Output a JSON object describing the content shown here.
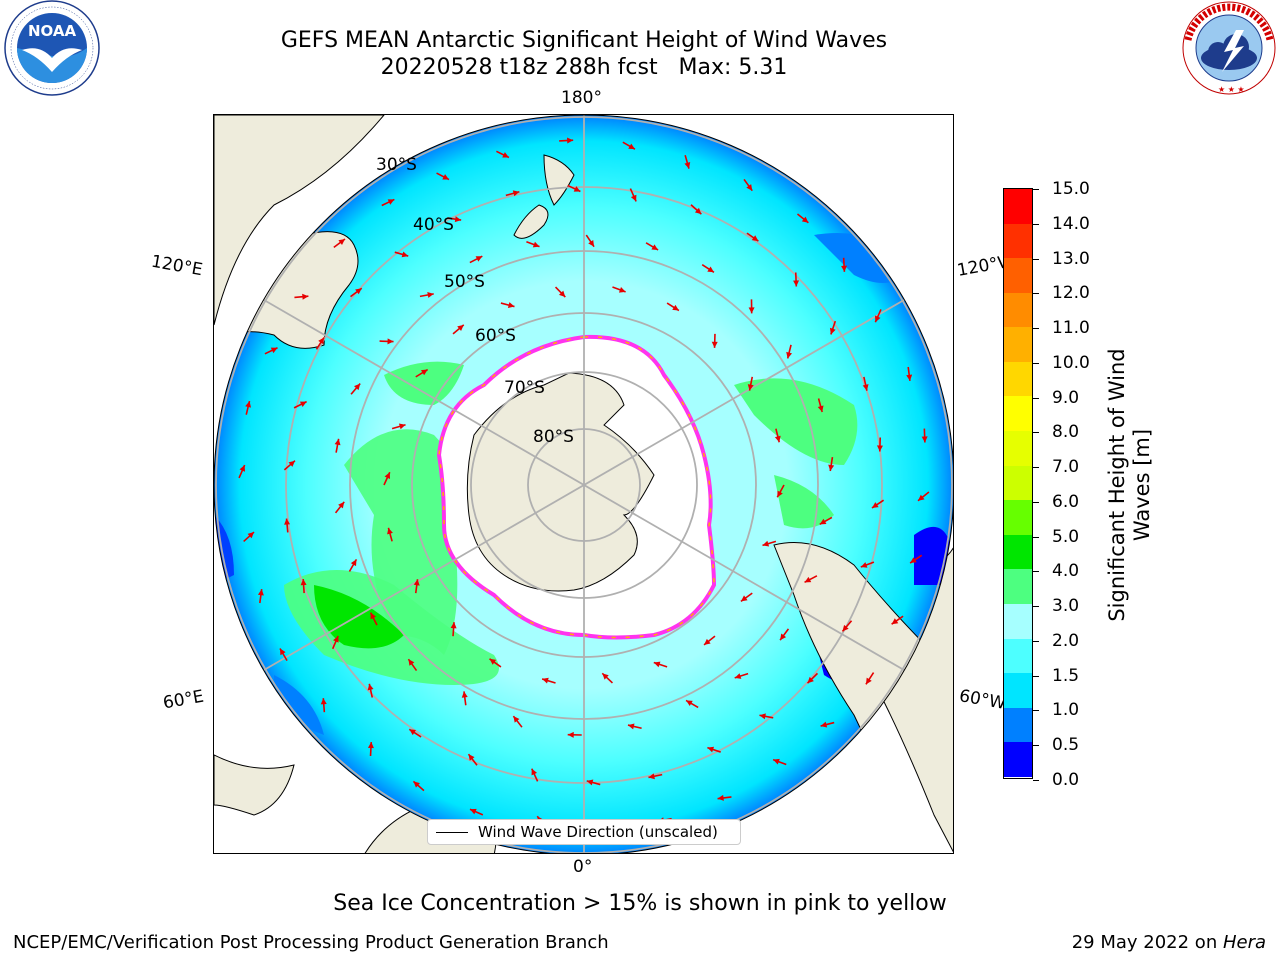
{
  "title": {
    "line1": "GEFS MEAN Antarctic Significant Height of Wind Waves",
    "line2": "20220528 t18z 288h fcst   Max: 5.31"
  },
  "logos": {
    "left": {
      "name": "noaa-logo",
      "text": "NOAA",
      "ring_text": "NATIONAL OCEANIC AND ATMOSPHERIC ADMINISTRATION · U.S. DEPARTMENT OF COMMERCE"
    },
    "right": {
      "name": "nws-logo",
      "ring_text": "NATIONAL WEATHER SERVICE"
    }
  },
  "map": {
    "projection": "south-polar-stereographic",
    "longitude_labels": {
      "top": "180°",
      "bottom": "0°",
      "upper_left": "120°E",
      "upper_right": "120°W",
      "lower_left": "60°E",
      "lower_right": "60°W"
    },
    "latitude_labels": [
      "30°S",
      "40°S",
      "50°S",
      "60°S",
      "70°S",
      "80°S"
    ],
    "colors": {
      "land": "#eeecdc",
      "ice": "#ffffff",
      "ice_edge": "#ff33ee",
      "ice_edge_inner": "#ffb000",
      "gridline": "#b0b0b0",
      "arrow": "#e60000"
    },
    "legend_label": "Wind Wave Direction (unscaled)"
  },
  "colorbar": {
    "label": "Significant Height of Wind Waves [m]",
    "ticks": [
      "0.0",
      "0.5",
      "1.0",
      "1.5",
      "2.0",
      "3.0",
      "4.0",
      "5.0",
      "6.0",
      "7.0",
      "8.0",
      "9.0",
      "10.0",
      "11.0",
      "12.0",
      "13.0",
      "14.0",
      "15.0"
    ],
    "colors": [
      "#0000ff",
      "#0080ff",
      "#00e5ff",
      "#4dffff",
      "#a6ffff",
      "#4dff80",
      "#00e600",
      "#66ff00",
      "#ccff00",
      "#e6ff00",
      "#ffff00",
      "#ffd700",
      "#ffb000",
      "#ff8c00",
      "#ff6000",
      "#ff3000",
      "#ff0000"
    ]
  },
  "sea_ice_note": "Sea Ice Concentration > 15% is shown in pink to yellow",
  "footer": {
    "left": "NCEP/EMC/Verification Post Processing Product Generation Branch",
    "right_date": "29 May 2022 on ",
    "right_host": "Hera"
  }
}
